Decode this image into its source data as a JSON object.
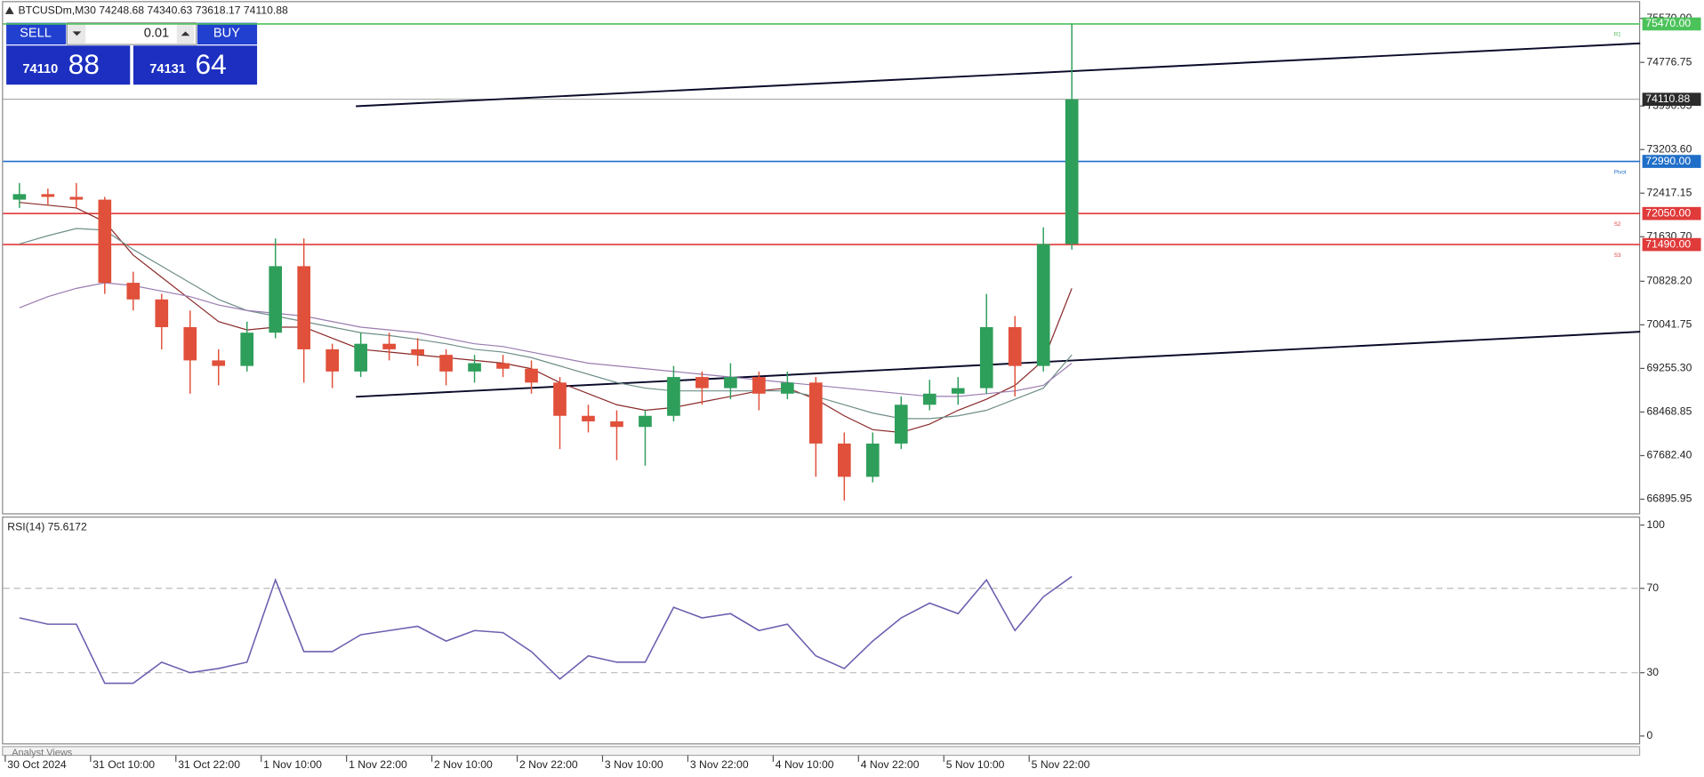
{
  "chart_data": {
    "type": "candlestick",
    "title": "BTCUSDm,M30  74248.68 74340.63 73618.17 74110.88",
    "categories": [
      "30 Oct 2024",
      null,
      null,
      "31 Oct 10:00",
      null,
      null,
      "31 Oct 22:00",
      null,
      null,
      "1 Nov 10:00",
      null,
      null,
      "1 Nov 22:00",
      null,
      null,
      "2 Nov 10:00",
      null,
      null,
      "2 Nov 22:00",
      null,
      null,
      "3 Nov 10:00",
      null,
      null,
      "3 Nov 22:00",
      null,
      null,
      "4 Nov 10:00",
      null,
      null,
      "4 Nov 22:00",
      null,
      null,
      "5 Nov 10:00",
      null,
      null,
      "5 Nov 22:00",
      null
    ],
    "open": [
      72300,
      72400,
      72350,
      72300,
      70800,
      70500,
      70000,
      69400,
      69300,
      69900,
      71100,
      69600,
      69200,
      69700,
      69600,
      69500,
      69200,
      69350,
      69250,
      69000,
      68400,
      68300,
      68200,
      68400,
      69100,
      68900,
      69100,
      68800,
      69000,
      67900,
      67300,
      67900,
      68600,
      68800,
      68900,
      70000,
      69300,
      71500
    ],
    "high": [
      72600,
      72500,
      72600,
      72350,
      71000,
      70600,
      70300,
      69600,
      70100,
      71600,
      71600,
      69700,
      69900,
      69900,
      69800,
      69600,
      69500,
      69500,
      69400,
      69100,
      68600,
      68500,
      68500,
      69300,
      69200,
      69350,
      69200,
      69200,
      69100,
      68100,
      68100,
      68750,
      69050,
      69100,
      70600,
      70200,
      71800,
      75480
    ],
    "low": [
      72150,
      72200,
      72150,
      70600,
      70300,
      69600,
      68800,
      68950,
      69200,
      69800,
      69000,
      68900,
      69100,
      69400,
      69300,
      68950,
      69000,
      69100,
      68800,
      67800,
      68100,
      67600,
      67500,
      68300,
      68600,
      68700,
      68500,
      68700,
      67300,
      66870,
      67200,
      67800,
      68500,
      68600,
      68800,
      68750,
      69200,
      71400
    ],
    "close": [
      72400,
      72350,
      72300,
      70800,
      70500,
      70000,
      69400,
      69300,
      69900,
      71100,
      69600,
      69200,
      69700,
      69600,
      69500,
      69200,
      69350,
      69250,
      69000,
      68400,
      68300,
      68200,
      68400,
      69100,
      68900,
      69100,
      68800,
      69000,
      67900,
      67300,
      67900,
      68600,
      68800,
      68900,
      70000,
      69300,
      71500,
      74110.88
    ],
    "up_color": "#2e9e5b",
    "down_color": "#e0503a",
    "ylim": [
      66622,
      75863
    ],
    "yticks": [
      {
        "value": 75570,
        "label": "75570.00"
      },
      74776.75,
      73990.05,
      {
        "value": 73203.6,
        "label": "73203.60"
      },
      72417.15,
      {
        "value": 71630.7,
        "label": "71630.70"
      },
      {
        "value": 70828.2,
        "label": "70828.20"
      },
      70041.75,
      {
        "value": 69255.3,
        "label": "69255.30"
      },
      68468.85,
      {
        "value": 67682.4,
        "label": "67682.40"
      },
      66895.95
    ],
    "moving_averages": [
      {
        "color": "#8b2a2a",
        "values": [
          72250,
          72200,
          72150,
          71900,
          71300,
          70900,
          70500,
          70100,
          69950,
          70000,
          70000,
          69800,
          69600,
          69550,
          69500,
          69450,
          69400,
          69350,
          69250,
          69000,
          68800,
          68600,
          68500,
          68550,
          68650,
          68750,
          68850,
          68900,
          68700,
          68400,
          68150,
          68100,
          68250,
          68500,
          68700,
          68950,
          69400,
          70700
        ]
      },
      {
        "color": "#6f8f8a",
        "values": [
          71500,
          71650,
          71780,
          71750,
          71400,
          71100,
          70800,
          70500,
          70300,
          70200,
          70100,
          70000,
          69900,
          69850,
          69780,
          69700,
          69600,
          69550,
          69450,
          69300,
          69150,
          69000,
          68900,
          68850,
          68850,
          68850,
          68850,
          68850,
          68750,
          68600,
          68450,
          68350,
          68350,
          68400,
          68500,
          68700,
          68900,
          69500
        ]
      },
      {
        "color": "#9a7cb0",
        "values": [
          70350,
          70550,
          70700,
          70800,
          70750,
          70650,
          70550,
          70400,
          70300,
          70250,
          70200,
          70100,
          70000,
          69950,
          69900,
          69800,
          69700,
          69650,
          69550,
          69450,
          69350,
          69300,
          69250,
          69200,
          69150,
          69100,
          69050,
          69000,
          68950,
          68900,
          68850,
          68800,
          68750,
          68750,
          68800,
          68850,
          68950,
          69350
        ]
      }
    ],
    "levels": [
      {
        "value": 75470,
        "label": "75470.00",
        "color": "#4cc25a",
        "tag": "R1"
      },
      {
        "value": 74110.88,
        "label": "74110.88",
        "color": "#2b2b2b",
        "line_color": "#8c8c8c"
      },
      {
        "value": 72990,
        "label": "72990.00",
        "color": "#1f6fc9",
        "tag": "Pivot"
      },
      {
        "value": 72050,
        "label": "72050.00",
        "color": "#e03a3a",
        "tag": "S2"
      },
      {
        "value": 71490,
        "label": "71490.00",
        "color": "#e03a3a",
        "tag": "S3"
      }
    ],
    "trendlines": [
      {
        "values": [
          73986,
          75120
        ],
        "color": "#0a0a2a"
      },
      {
        "values": [
          68744,
          69917
        ],
        "color": "#0a0a2a"
      }
    ],
    "rsi": {
      "title": "RSI(14) 75.6172",
      "color": "#6e5fb0",
      "values": [
        56,
        53,
        53,
        25,
        25,
        35,
        30,
        32,
        35,
        74,
        40,
        40,
        48,
        50,
        52,
        45,
        50,
        49,
        40,
        27,
        38,
        35,
        35,
        61,
        56,
        58,
        50,
        53,
        38,
        32,
        45,
        56,
        63,
        58,
        74,
        50,
        66,
        75.6172
      ],
      "ylim": [
        -4,
        103
      ],
      "yticks": [
        0,
        30,
        70,
        100
      ],
      "dashed": [
        30,
        70
      ]
    }
  },
  "trade_panel": {
    "sell": "SELL",
    "lot": "0.01",
    "buy": "BUY",
    "bid_big": "74110",
    "bid_small": "88",
    "ask_big": "74131",
    "ask_small": "64"
  },
  "footer": "Analyst Views"
}
